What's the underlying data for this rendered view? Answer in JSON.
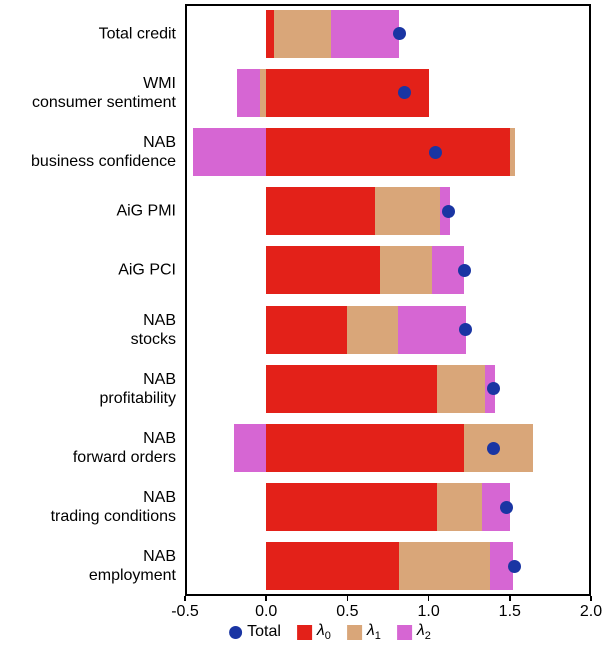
{
  "chart_data": {
    "type": "bar",
    "orientation": "horizontal",
    "title": "",
    "xlabel": "",
    "ylabel": "",
    "xlim": [
      -0.5,
      2.0
    ],
    "xticks": [
      -0.5,
      0.0,
      0.5,
      1.0,
      1.5,
      2.0
    ],
    "xtick_labels": [
      "-0.5",
      "0.0",
      "0.5",
      "1.0",
      "1.5",
      "2.0"
    ],
    "grid": false,
    "categories": [
      [
        "Total credit"
      ],
      [
        "WMI",
        "consumer sentiment"
      ],
      [
        "NAB",
        "business confidence"
      ],
      [
        "AiG PMI"
      ],
      [
        "AiG PCI"
      ],
      [
        "NAB",
        "stocks"
      ],
      [
        "NAB",
        "profitability"
      ],
      [
        "NAB",
        "forward orders"
      ],
      [
        "NAB",
        "trading conditions"
      ],
      [
        "NAB",
        "employment"
      ]
    ],
    "series": [
      {
        "name": "λ0",
        "symbol": "λ",
        "sub": "0",
        "color": "#e32119",
        "values": [
          0.05,
          1.0,
          1.5,
          0.67,
          0.7,
          0.5,
          1.05,
          1.22,
          1.05,
          0.82
        ]
      },
      {
        "name": "λ1",
        "symbol": "λ",
        "sub": "1",
        "color": "#d9a679",
        "values": [
          0.35,
          -0.04,
          0.03,
          0.4,
          0.32,
          0.31,
          0.3,
          0.42,
          0.28,
          0.56
        ]
      },
      {
        "name": "λ2",
        "symbol": "λ",
        "sub": "2",
        "color": "#d666d3",
        "values": [
          0.42,
          -0.14,
          -0.45,
          0.06,
          0.2,
          0.42,
          0.06,
          -0.2,
          0.17,
          0.14
        ]
      }
    ],
    "totals": {
      "name": "Total",
      "color": "#1a35a3",
      "values": [
        0.82,
        0.85,
        1.04,
        1.12,
        1.22,
        1.23,
        1.4,
        1.4,
        1.48,
        1.53
      ]
    },
    "legend": {
      "position": "bottom",
      "entries": [
        {
          "type": "dot",
          "label": "Total",
          "color": "#1a35a3"
        },
        {
          "type": "square",
          "symbol": "λ",
          "sub": "0",
          "color": "#e32119"
        },
        {
          "type": "square",
          "symbol": "λ",
          "sub": "1",
          "color": "#d9a679"
        },
        {
          "type": "square",
          "symbol": "λ",
          "sub": "2",
          "color": "#d666d3"
        }
      ]
    }
  }
}
